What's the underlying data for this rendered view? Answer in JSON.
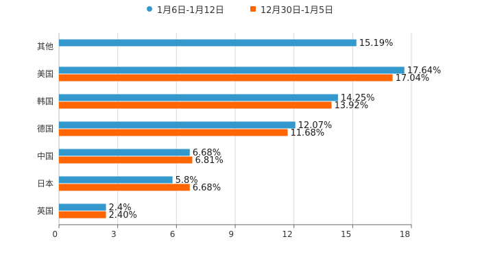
{
  "chart_data": {
    "type": "bar",
    "orientation": "horizontal",
    "categories": [
      "其他",
      "美国",
      "韩国",
      "德国",
      "中国",
      "日本",
      "英国"
    ],
    "series": [
      {
        "name": "1月6日-1月12日",
        "color": "#3399cc",
        "values": [
          15.19,
          17.64,
          14.25,
          12.07,
          6.68,
          5.8,
          2.4
        ],
        "labels": [
          "15.19%",
          "17.64%",
          "14.25%",
          "12.07%",
          "6.68%",
          "5.8%",
          "2.4%"
        ]
      },
      {
        "name": "12月30日-1月5日",
        "color": "#ff6600",
        "values": [
          null,
          17.04,
          13.92,
          11.68,
          6.81,
          6.68,
          2.4
        ],
        "labels": [
          null,
          "17.04%",
          "13.92%",
          "11.68%",
          "6.81%",
          "6.68%",
          "2.40%"
        ]
      }
    ],
    "xlim": [
      0,
      18
    ],
    "xticks": [
      0,
      3,
      6,
      9,
      12,
      15,
      18
    ],
    "xtick_labels": [
      "0",
      "3",
      "6",
      "9",
      "12",
      "15",
      "18"
    ],
    "grid": true,
    "legend_position": "top-center"
  }
}
